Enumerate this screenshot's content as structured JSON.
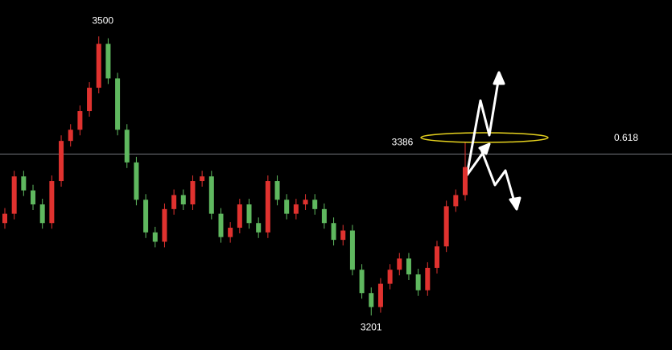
{
  "chart_data": {
    "type": "candlestick",
    "categories": [
      null,
      null,
      null,
      null,
      null,
      null,
      null,
      null,
      null,
      null,
      null,
      null,
      null,
      null,
      null,
      null,
      null,
      null,
      null,
      null,
      null,
      null,
      null,
      null,
      null,
      null,
      null,
      null,
      null,
      null,
      null,
      null,
      null,
      null,
      null,
      null,
      null,
      null,
      null,
      null,
      null,
      null,
      null,
      null,
      null,
      null,
      null,
      null,
      null,
      null
    ],
    "open": [
      3300,
      3310,
      3350,
      3335,
      3320,
      3300,
      3345,
      3388,
      3400,
      3420,
      3445,
      3492,
      3455,
      3400,
      3365,
      3325,
      3290,
      3280,
      3315,
      3330,
      3320,
      3345,
      3350,
      3310,
      3285,
      3295,
      3320,
      3300,
      3290,
      3345,
      3325,
      3310,
      3320,
      3325,
      3315,
      3300,
      3282,
      3292,
      3250,
      3225,
      3210,
      3235,
      3250,
      3262,
      3245,
      3228,
      3252,
      3275,
      3318,
      3330
    ],
    "high": [
      3316,
      3356,
      3356,
      3341,
      3326,
      3351,
      3394,
      3406,
      3426,
      3451,
      3500,
      3498,
      3461,
      3406,
      3371,
      3331,
      3296,
      3321,
      3336,
      3336,
      3351,
      3356,
      3356,
      3316,
      3301,
      3326,
      3326,
      3306,
      3351,
      3351,
      3331,
      3326,
      3331,
      3331,
      3321,
      3306,
      3298,
      3298,
      3256,
      3231,
      3241,
      3256,
      3268,
      3268,
      3251,
      3258,
      3281,
      3324,
      3336,
      3386
    ],
    "low": [
      3294,
      3304,
      3329,
      3314,
      3294,
      3294,
      3339,
      3382,
      3394,
      3414,
      3439,
      3449,
      3394,
      3359,
      3319,
      3284,
      3274,
      3274,
      3309,
      3314,
      3314,
      3339,
      3304,
      3279,
      3279,
      3289,
      3294,
      3284,
      3284,
      3319,
      3304,
      3304,
      3314,
      3309,
      3294,
      3276,
      3276,
      3244,
      3219,
      3201,
      3204,
      3229,
      3244,
      3239,
      3222,
      3222,
      3246,
      3269,
      3312,
      3324
    ],
    "close": [
      3310,
      3350,
      3335,
      3320,
      3300,
      3345,
      3388,
      3400,
      3420,
      3445,
      3492,
      3455,
      3400,
      3365,
      3325,
      3290,
      3280,
      3315,
      3330,
      3320,
      3345,
      3350,
      3310,
      3285,
      3295,
      3320,
      3300,
      3290,
      3345,
      3325,
      3310,
      3320,
      3325,
      3315,
      3300,
      3282,
      3292,
      3250,
      3225,
      3210,
      3235,
      3250,
      3262,
      3245,
      3228,
      3252,
      3275,
      3318,
      3330,
      3360
    ],
    "up_color": "#e0322f",
    "down_color": "#5fb85f",
    "ylim": [
      3164,
      3539
    ],
    "fib_level": {
      "value": 3374,
      "label": "0.618"
    }
  }
}
